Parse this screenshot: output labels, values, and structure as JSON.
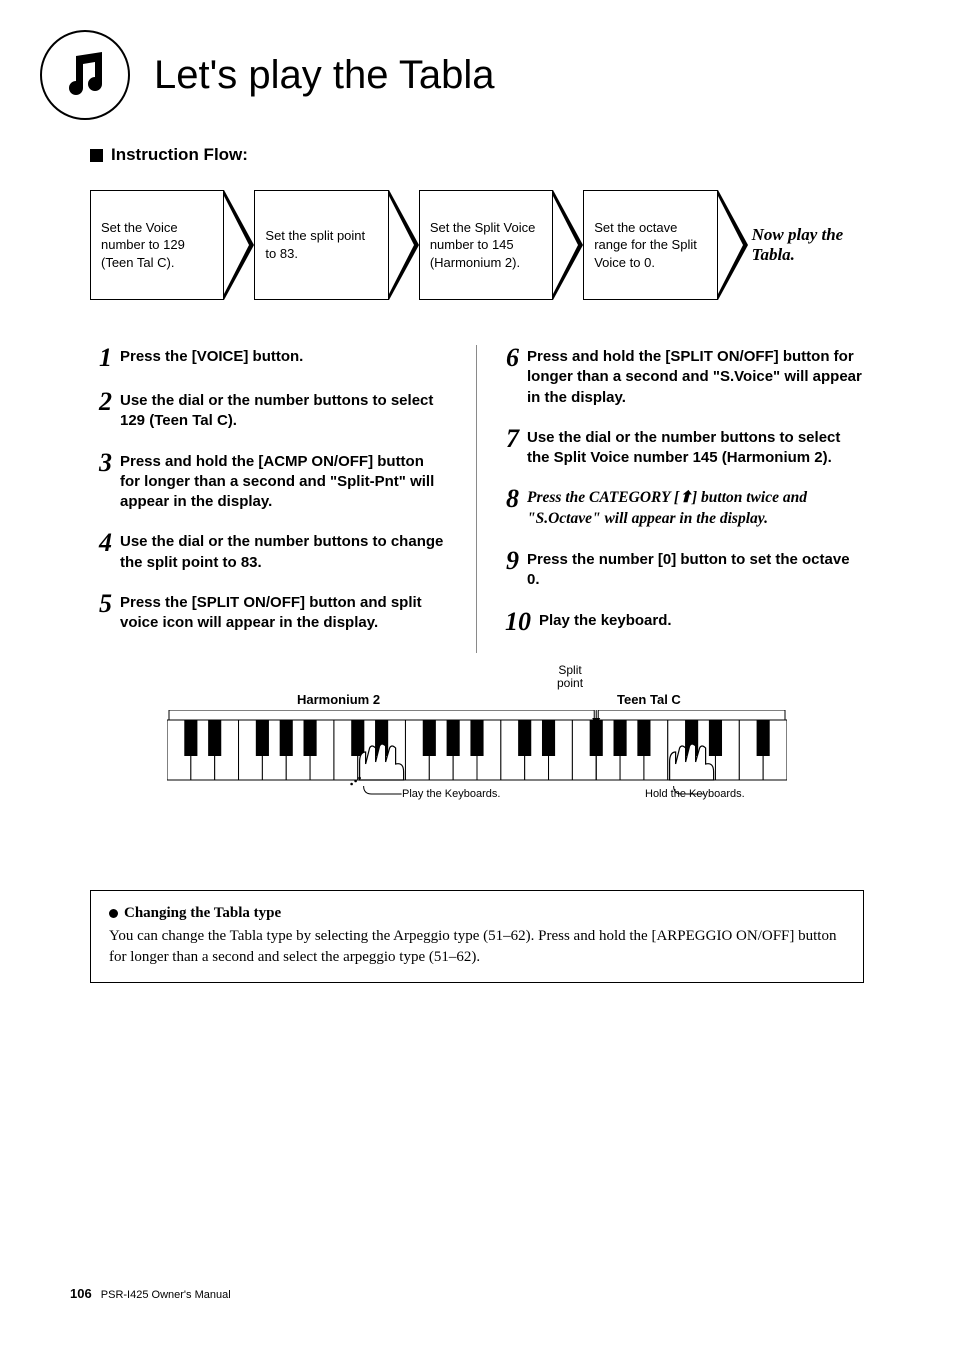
{
  "page_title": "Let's play the Tabla",
  "subhead": "Instruction Flow:",
  "flow": {
    "boxes": [
      "Set the Voice number to 129 (Teen Tal C).",
      "Set the split point to 83.",
      "Set the Split Voice number to 145 (Harmonium 2).",
      "Set the octave range for the Split Voice to 0."
    ],
    "final": "Now play the Tabla."
  },
  "steps_left": [
    {
      "n": "1",
      "text": "Press the [VOICE] button."
    },
    {
      "n": "2",
      "text": "Use the dial or the number buttons to select 129 (Teen Tal C)."
    },
    {
      "n": "3",
      "text": "Press and hold the [ACMP ON/OFF] button for longer than a second and \"Split-Pnt\" will appear in the display."
    },
    {
      "n": "4",
      "text": "Use the dial or the number buttons to change the split point to 83."
    },
    {
      "n": "5",
      "text": "Press the [SPLIT ON/OFF] button and split voice icon will appear in the display."
    }
  ],
  "steps_right": [
    {
      "n": "6",
      "text": "Press and hold the [SPLIT ON/OFF] button for longer than a second and \"S.Voice\" will appear in the display."
    },
    {
      "n": "7",
      "text": "Use the dial or the number buttons to select the Split Voice number 145 (Harmonium 2)."
    },
    {
      "n": "8",
      "emph": true,
      "text": "Press the CATEGORY [⬆] button twice and \"S.Octave\" will appear in the display."
    },
    {
      "n": "9",
      "text": "Press the number [0] button to set the octave 0."
    },
    {
      "n": "10",
      "text": "Play the keyboard.",
      "wide": true
    }
  ],
  "keyboard": {
    "split_label": "Split\npoint",
    "left_label": "Harmonium 2",
    "right_label": "Teen Tal C",
    "play_caption": "Play the Keyboards.",
    "hold_caption": "Hold the Keyboards.",
    "white_keys": 26,
    "split_after_white": 18,
    "colors": {
      "white": "#ffffff",
      "black": "#000000",
      "border": "#000000"
    }
  },
  "tip": {
    "title": "Changing the Tabla type",
    "body": "You can change the Tabla type by selecting the Arpeggio type (51–62). Press and hold the [ARPEGGIO ON/OFF] button for longer than a second and select the arpeggio type (51–62)."
  },
  "footer": {
    "page": "106",
    "text": "PSR-I425  Owner's Manual"
  }
}
